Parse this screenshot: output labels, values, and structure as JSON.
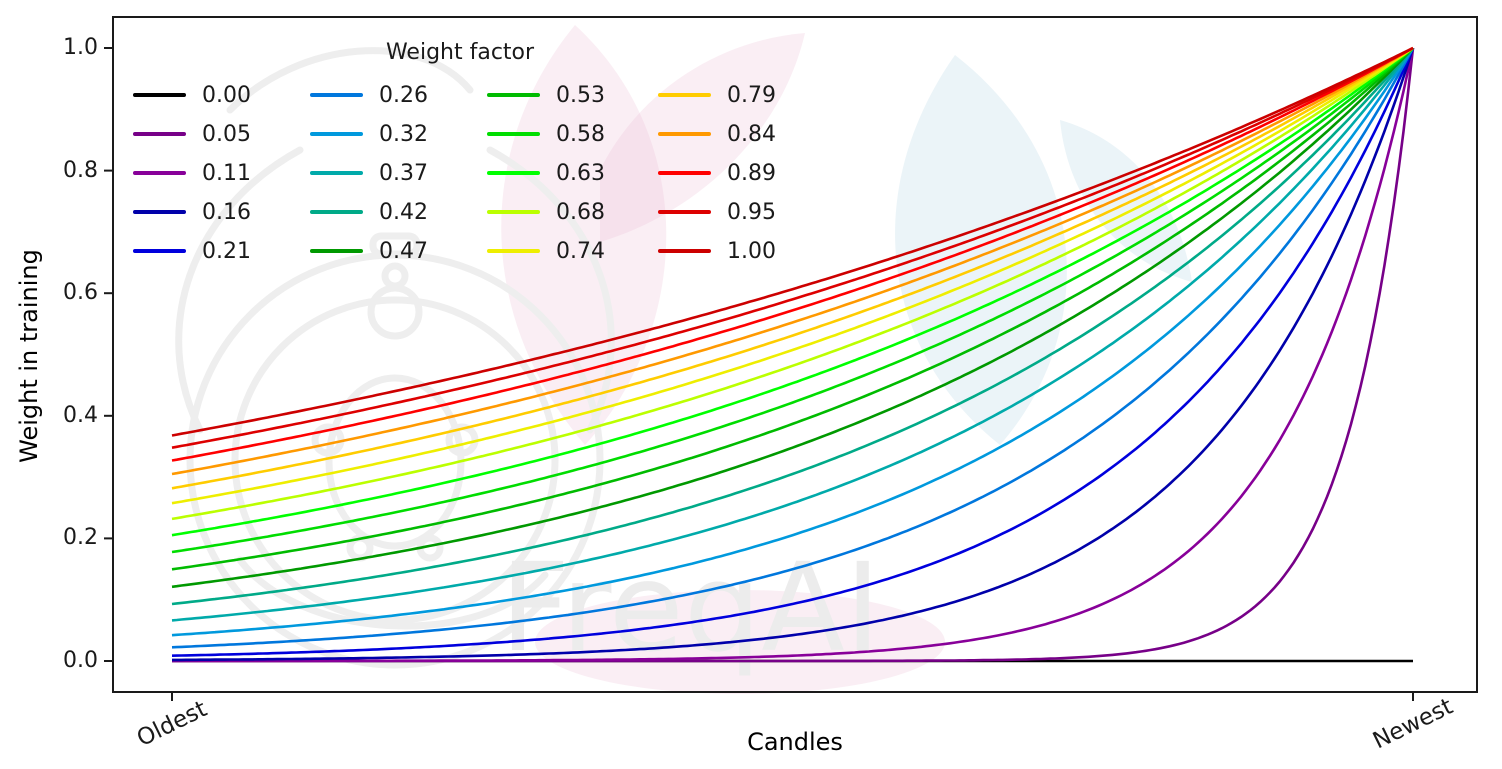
{
  "figure": {
    "background": "#ffffff",
    "axes_color": "#1a1a1a",
    "colormap": "nipy_spectral"
  },
  "chart_data": {
    "type": "line",
    "title": "",
    "xlabel": "Candles",
    "ylabel": "Weight in training",
    "x_tick_labels": [
      "Oldest",
      "Newest"
    ],
    "y_ticks": [
      0.0,
      0.2,
      0.4,
      0.6,
      0.8,
      1.0
    ],
    "ylim": [
      0,
      1
    ],
    "grid": false,
    "legend": {
      "title": "Weight factor",
      "position": "upper-left",
      "columns": 4,
      "rows": 5
    },
    "formula": "y(t) = exp(-(1 - t) / w) for t in [0,1] (t=0 oldest candle, t=1 newest); w = 0 gives a flat line at 0",
    "series": [
      {
        "label": "0.00",
        "w": 0.0,
        "color": "#000000",
        "y_start": 0.0,
        "y_end": 0.0
      },
      {
        "label": "0.05",
        "w": 0.0526,
        "color": "#770088",
        "y_start": 0.0,
        "y_end": 1.0
      },
      {
        "label": "0.11",
        "w": 0.1053,
        "color": "#880099",
        "y_start": 0.0001,
        "y_end": 1.0
      },
      {
        "label": "0.16",
        "w": 0.1579,
        "color": "#0000aa",
        "y_start": 0.0018,
        "y_end": 1.0
      },
      {
        "label": "0.21",
        "w": 0.2105,
        "color": "#0000dd",
        "y_start": 0.0087,
        "y_end": 1.0
      },
      {
        "label": "0.26",
        "w": 0.2632,
        "color": "#0077dd",
        "y_start": 0.0224,
        "y_end": 1.0
      },
      {
        "label": "0.32",
        "w": 0.3158,
        "color": "#0099dd",
        "y_start": 0.0421,
        "y_end": 1.0
      },
      {
        "label": "0.37",
        "w": 0.3684,
        "color": "#00aaaa",
        "y_start": 0.0663,
        "y_end": 1.0
      },
      {
        "label": "0.42",
        "w": 0.4211,
        "color": "#00aa88",
        "y_start": 0.093,
        "y_end": 1.0
      },
      {
        "label": "0.47",
        "w": 0.4737,
        "color": "#009900",
        "y_start": 0.1211,
        "y_end": 1.0
      },
      {
        "label": "0.53",
        "w": 0.5263,
        "color": "#00bb00",
        "y_start": 0.1496,
        "y_end": 1.0
      },
      {
        "label": "0.58",
        "w": 0.5789,
        "color": "#00dd00",
        "y_start": 0.1778,
        "y_end": 1.0
      },
      {
        "label": "0.63",
        "w": 0.6316,
        "color": "#00ff00",
        "y_start": 0.2053,
        "y_end": 1.0
      },
      {
        "label": "0.68",
        "w": 0.6842,
        "color": "#bbff00",
        "y_start": 0.2319,
        "y_end": 1.0
      },
      {
        "label": "0.74",
        "w": 0.7368,
        "color": "#eeee00",
        "y_start": 0.2574,
        "y_end": 1.0
      },
      {
        "label": "0.79",
        "w": 0.7895,
        "color": "#ffcc00",
        "y_start": 0.2819,
        "y_end": 1.0
      },
      {
        "label": "0.84",
        "w": 0.8421,
        "color": "#ff9900",
        "y_start": 0.3052,
        "y_end": 1.0
      },
      {
        "label": "0.89",
        "w": 0.8947,
        "color": "#ff0000",
        "y_start": 0.3271,
        "y_end": 1.0
      },
      {
        "label": "0.95",
        "w": 0.9474,
        "color": "#dd0000",
        "y_start": 0.348,
        "y_end": 1.0
      },
      {
        "label": "1.00",
        "w": 1.0,
        "color": "#cc0000",
        "y_start": 0.3679,
        "y_end": 1.0
      }
    ]
  },
  "watermark": {
    "text": "FreqAI",
    "text_color": "#ececec",
    "sketch_color": "#eeeeee",
    "pink": "rgba(236,195,215,0.28)",
    "blue": "rgba(190,220,232,0.30)"
  }
}
